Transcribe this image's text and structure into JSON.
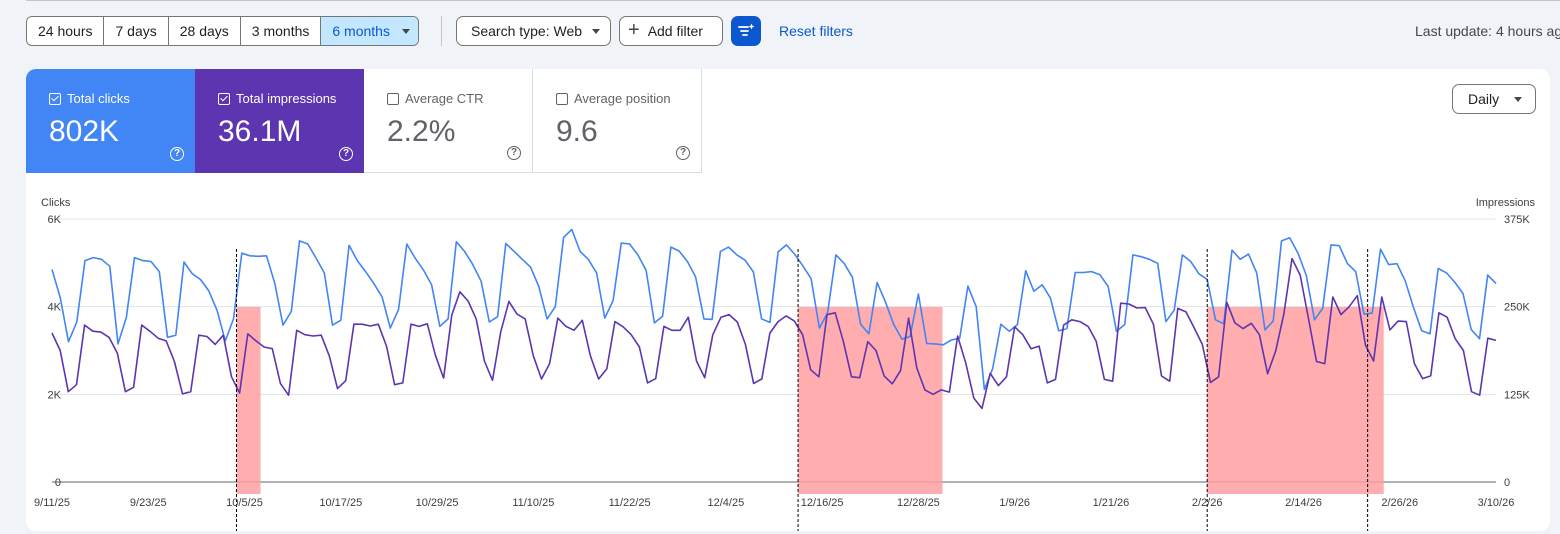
{
  "toolbar": {
    "ranges": [
      "24 hours",
      "7 days",
      "28 days",
      "3 months",
      "6 months"
    ],
    "active_range": "6 months",
    "search_type": "Search type: Web",
    "add_filter": "Add filter",
    "reset_filters": "Reset filters",
    "last_update": "Last update: 4 hours ag"
  },
  "metrics": {
    "clicks": {
      "label": "Total clicks",
      "value": "802K",
      "checked": true
    },
    "impressions": {
      "label": "Total impressions",
      "value": "36.1M",
      "checked": true
    },
    "ctr": {
      "label": "Average CTR",
      "value": "2.2%",
      "checked": false
    },
    "position": {
      "label": "Average position",
      "value": "9.6",
      "checked": false
    }
  },
  "granularity": "Daily",
  "icons": {
    "help": "help-icon",
    "filter": "filter-sparkle-icon",
    "add": "plus-icon",
    "checkbox": "checkbox-icon"
  },
  "colors": {
    "clicks": "#4285f4",
    "impressions": "#5e35b1",
    "highlight": "#ff9fa1",
    "accent": "#0b57d0"
  },
  "chart_data": {
    "type": "line",
    "ylabel_left": "Clicks",
    "ylabel_right": "Impressions",
    "y_ticks_left": [
      "0",
      "2K",
      "4K",
      "6K"
    ],
    "y_ticks_right": [
      "0",
      "125K",
      "250K",
      "375K"
    ],
    "ylim_left": [
      0,
      6000
    ],
    "ylim_right": [
      0,
      375000
    ],
    "x_tick_labels": [
      "9/11/25",
      "9/23/25",
      "10/5/25",
      "10/17/25",
      "10/29/25",
      "11/10/25",
      "11/22/25",
      "12/4/25",
      "12/16/25",
      "12/28/25",
      "1/9/26",
      "1/21/26",
      "2/2/26",
      "2/14/26",
      "2/26/26",
      "3/10/26"
    ],
    "x_start": "2025-09-11",
    "x_end": "2026-03-10",
    "highlight_ranges": [
      [
        "2025-10-04",
        "2025-10-07"
      ],
      [
        "2025-12-13",
        "2025-12-31"
      ],
      [
        "2026-02-02",
        "2026-02-24"
      ]
    ],
    "dashed_markers": [
      "2025-10-04",
      "2025-12-13",
      "2026-02-02",
      "2026-02-22"
    ],
    "series": [
      {
        "name": "Total clicks",
        "axis": "left",
        "values": [
          4850,
          4200,
          3200,
          3650,
          5050,
          5120,
          5080,
          4920,
          3150,
          3750,
          5120,
          5050,
          5030,
          4800,
          3300,
          3350,
          5020,
          4750,
          4620,
          4360,
          3920,
          3220,
          3720,
          5220,
          5160,
          5150,
          5160,
          4530,
          3580,
          3890,
          5500,
          5430,
          5110,
          4770,
          3580,
          3690,
          5400,
          5050,
          4800,
          4530,
          4220,
          3510,
          3940,
          5430,
          5110,
          4840,
          4500,
          3550,
          3720,
          5480,
          5260,
          4960,
          4580,
          3650,
          3770,
          5440,
          5260,
          5080,
          4900,
          4460,
          3720,
          4000,
          5580,
          5760,
          5260,
          5080,
          4770,
          3740,
          4140,
          5450,
          5430,
          5180,
          4830,
          3630,
          3780,
          5360,
          5270,
          5030,
          4680,
          3720,
          3710,
          5260,
          5360,
          5180,
          5060,
          4790,
          3720,
          3640,
          5250,
          5410,
          5200,
          4930,
          4640,
          3510,
          3860,
          5180,
          4990,
          4670,
          3600,
          3380,
          4550,
          4110,
          3600,
          3260,
          3320,
          4290,
          3160,
          3150,
          3130,
          3240,
          3280,
          4470,
          4000,
          2110,
          2590,
          3600,
          3440,
          3590,
          4820,
          4350,
          4500,
          4200,
          3450,
          3500,
          4780,
          4780,
          4800,
          4730,
          4460,
          3440,
          3590,
          5180,
          5140,
          5080,
          4990,
          3660,
          3920,
          5180,
          5030,
          4750,
          4620,
          3700,
          3610,
          5290,
          5080,
          5200,
          4770,
          3470,
          3670,
          5500,
          5570,
          5220,
          4720,
          3700,
          3960,
          5410,
          5390,
          4980,
          4800,
          3830,
          3850,
          5310,
          4960,
          4980,
          4590,
          3980,
          3450,
          3380,
          4870,
          4770,
          4560,
          4300,
          3480,
          3270,
          4720,
          4530
        ]
      },
      {
        "name": "Total impressions",
        "axis": "right",
        "values": [
          212500,
          187500,
          128750,
          138750,
          223750,
          215000,
          213750,
          206250,
          183750,
          128750,
          135000,
          223750,
          215000,
          205000,
          201250,
          171875,
          125625,
          128750,
          209375,
          207500,
          196250,
          209375,
          150000,
          126875,
          211250,
          201250,
          192500,
          190000,
          140625,
          123750,
          216250,
          210000,
          208125,
          209375,
          179375,
          133125,
          144375,
          225000,
          225000,
          222500,
          225000,
          193750,
          138750,
          141250,
          225000,
          221875,
          225625,
          180625,
          148125,
          238125,
          271250,
          258125,
          232500,
          172500,
          145000,
          213750,
          257500,
          239375,
          232500,
          180000,
          146875,
          168750,
          233750,
          221875,
          216250,
          230625,
          180000,
          146875,
          161250,
          228750,
          221250,
          210000,
          192500,
          141250,
          147500,
          221875,
          216250,
          216250,
          235000,
          172500,
          148750,
          210000,
          235000,
          238750,
          228125,
          196250,
          140625,
          146875,
          212500,
          228750,
          236875,
          229375,
          210000,
          160000,
          150000,
          238750,
          241250,
          200625,
          150000,
          148750,
          200000,
          187500,
          151250,
          140000,
          158750,
          233750,
          162500,
          131250,
          125000,
          131250,
          128125,
          208125,
          170000,
          119375,
          105000,
          155000,
          137500,
          150000,
          221250,
          210000,
          190000,
          193750,
          141250,
          146250,
          223750,
          231250,
          228750,
          221875,
          200625,
          146250,
          143750,
          255000,
          253750,
          248125,
          248750,
          225000,
          151250,
          143750,
          247500,
          242500,
          220000,
          196250,
          141875,
          150000,
          256250,
          226875,
          218750,
          226250,
          210000,
          154375,
          186875,
          240000,
          318750,
          295000,
          233750,
          171875,
          168750,
          263750,
          238750,
          250000,
          265625,
          195000,
          172500,
          263750,
          216875,
          229375,
          228750,
          168750,
          147500,
          151250,
          241250,
          235000,
          204375,
          187500,
          128750,
          123750,
          205000,
          201875
        ]
      }
    ]
  }
}
